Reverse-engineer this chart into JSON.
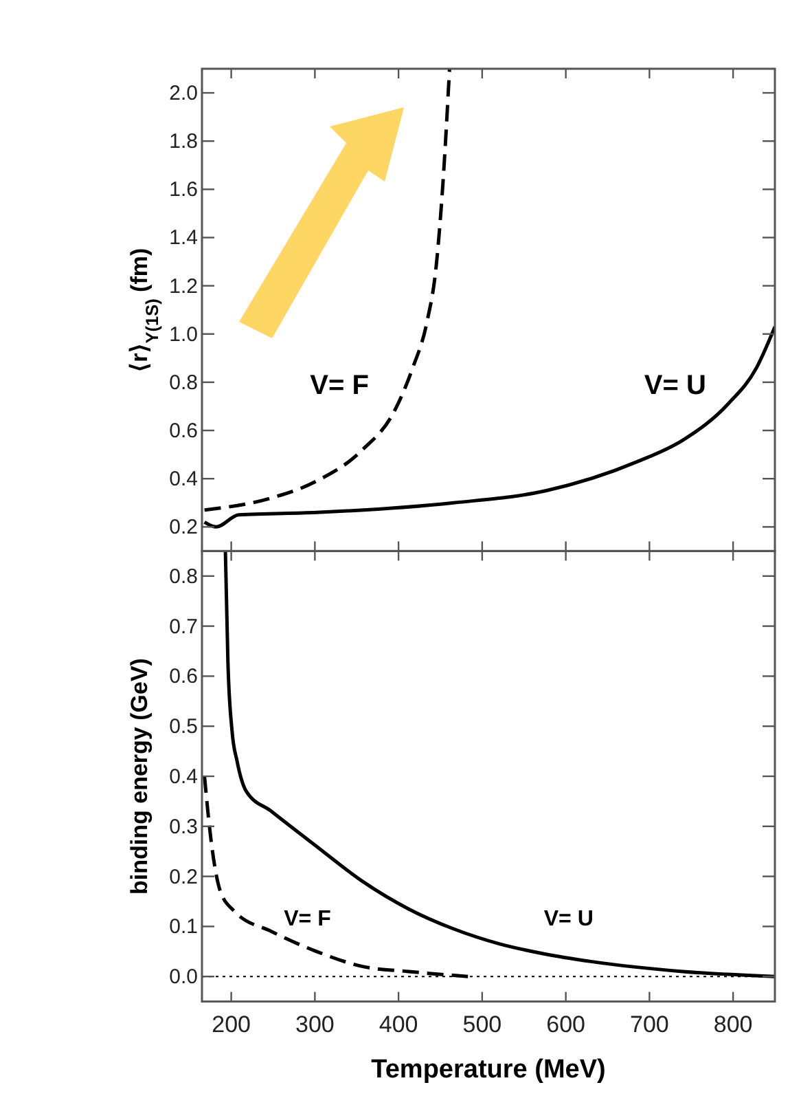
{
  "chart_data": [
    {
      "type": "line",
      "ylabel": "⟨r⟩$_{Υ(1S)}$ (fm)",
      "xlim": [
        165,
        850
      ],
      "xticks": [
        200,
        300,
        400,
        500,
        600,
        700,
        800
      ],
      "ylim": [
        0.1,
        2.1
      ],
      "yticks": [
        {
          "value": 0.2,
          "label": "0.2"
        },
        {
          "value": 0.4,
          "label": "0.4"
        },
        {
          "value": 0.6,
          "label": "0.6"
        },
        {
          "value": 0.8,
          "label": "0.8"
        },
        {
          "value": 1.0,
          "label": "1.0"
        },
        {
          "value": 1.2,
          "label": "1.2"
        },
        {
          "value": 1.4,
          "label": "1.4"
        },
        {
          "value": 1.6,
          "label": "1.6"
        },
        {
          "value": 1.8,
          "label": "1.8"
        },
        {
          "value": 2.0,
          "label": "2.0"
        }
      ],
      "tick_labels": "y",
      "grid": false,
      "series": [
        {
          "name": "V= F",
          "color": "#000000",
          "line_style": "dashed",
          "x": [
            168,
            248,
            302,
            357,
            395,
            417,
            434,
            445,
            453,
            461
          ],
          "values": [
            0.27,
            0.32,
            0.39,
            0.52,
            0.68,
            0.86,
            1.05,
            1.28,
            1.62,
            2.1
          ]
        },
        {
          "name": "V= U",
          "color": "#000000",
          "line_style": "solid",
          "x": [
            168,
            182,
            209,
            302,
            466,
            576,
            685,
            740,
            794,
            828,
            850
          ],
          "values": [
            0.22,
            0.2,
            0.25,
            0.26,
            0.3,
            0.35,
            0.47,
            0.56,
            0.71,
            0.86,
            1.03
          ]
        }
      ]
    },
    {
      "type": "line",
      "ylabel": "binding energy (GeV)",
      "xlabel": "Temperature (MeV)",
      "xlim": [
        165,
        850
      ],
      "xticks": [
        200,
        300,
        400,
        500,
        600,
        700,
        800
      ],
      "ylim": [
        -0.05,
        0.85
      ],
      "yticks": [
        {
          "value": 0,
          "label": "0.0"
        },
        {
          "value": 0.1,
          "label": "0.1"
        },
        {
          "value": 0.2,
          "label": "0.2"
        },
        {
          "value": 0.3,
          "label": "0.3"
        },
        {
          "value": 0.4,
          "label": "0.4"
        },
        {
          "value": 0.5,
          "label": "0.5"
        },
        {
          "value": 0.6,
          "label": "0.6"
        },
        {
          "value": 0.7,
          "label": "0.7"
        },
        {
          "value": 0.8,
          "label": "0.8"
        }
      ],
      "grid": false,
      "ref_lines": [
        {
          "axis": "y",
          "value": 0,
          "line_style": "dotted",
          "color": "#000000"
        }
      ],
      "series": [
        {
          "name": "V= U",
          "color": "#000000",
          "line_style": "solid",
          "x": [
            193,
            196,
            201,
            207,
            218,
            248,
            302,
            357,
            412,
            466,
            521,
            575,
            630,
            740,
            850
          ],
          "values": [
            0.85,
            0.63,
            0.49,
            0.43,
            0.37,
            0.33,
            0.26,
            0.19,
            0.135,
            0.095,
            0.065,
            0.045,
            0.03,
            0.01,
            0.0
          ]
        },
        {
          "name": "V= F",
          "color": "#000000",
          "line_style": "dashed",
          "x": [
            168,
            176,
            187,
            204,
            248,
            302,
            357,
            412,
            483
          ],
          "values": [
            0.4,
            0.27,
            0.17,
            0.13,
            0.09,
            0.05,
            0.02,
            0.01,
            0.0
          ]
        }
      ]
    }
  ]
}
